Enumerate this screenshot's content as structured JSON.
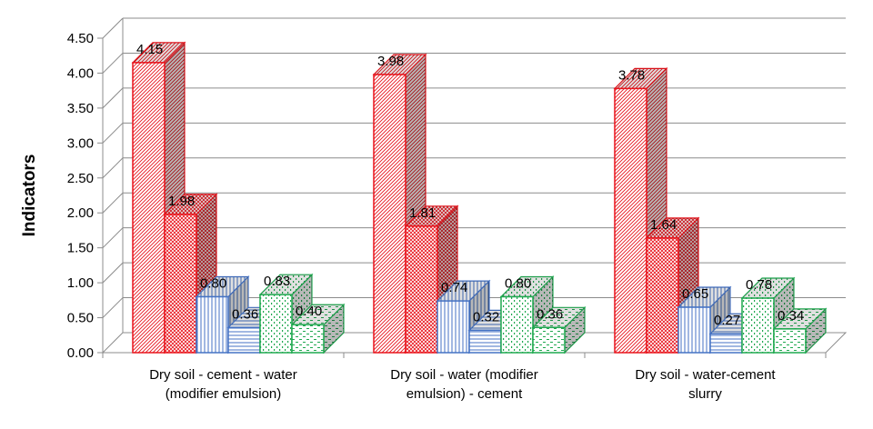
{
  "chart_data": {
    "type": "bar",
    "title": "",
    "xlabel": "",
    "ylabel": "Indicators",
    "ylim": [
      0,
      4.5
    ],
    "ytick_step": 0.5,
    "grid": true,
    "legend": "none",
    "categories": [
      [
        "Dry soil - cement - water",
        "(modifier emulsion)"
      ],
      [
        "Dry soil - water (modifier",
        "emulsion) - cement"
      ],
      [
        "Dry soil - water-cement",
        "slurry"
      ]
    ],
    "series": [
      {
        "values": [
          4.15,
          3.98,
          3.78
        ],
        "labels": [
          "4.15",
          "3.98",
          "3.78"
        ],
        "color": "#e8141c",
        "pattern": "diagonal-dense"
      },
      {
        "values": [
          1.98,
          1.81,
          1.64
        ],
        "labels": [
          "1.98",
          "1.81",
          "1.64"
        ],
        "color": "#e8141c",
        "pattern": "crosshatch"
      },
      {
        "values": [
          0.8,
          0.74,
          0.65
        ],
        "labels": [
          "0.80",
          "0.74",
          "0.65"
        ],
        "color": "#4472c4",
        "pattern": "vertical-lines"
      },
      {
        "values": [
          0.36,
          0.32,
          0.27
        ],
        "labels": [
          "0.36",
          "0.32",
          "0.27"
        ],
        "color": "#4472c4",
        "pattern": "horizontal-lines"
      },
      {
        "values": [
          0.83,
          0.8,
          0.78
        ],
        "labels": [
          "0.83",
          "0.80",
          "0.78"
        ],
        "color": "#1fa84f",
        "pattern": "dotted"
      },
      {
        "values": [
          0.4,
          0.36,
          0.34
        ],
        "labels": [
          "0.40",
          "0.36",
          "0.34"
        ],
        "color": "#1fa84f",
        "pattern": "dashed"
      }
    ]
  }
}
